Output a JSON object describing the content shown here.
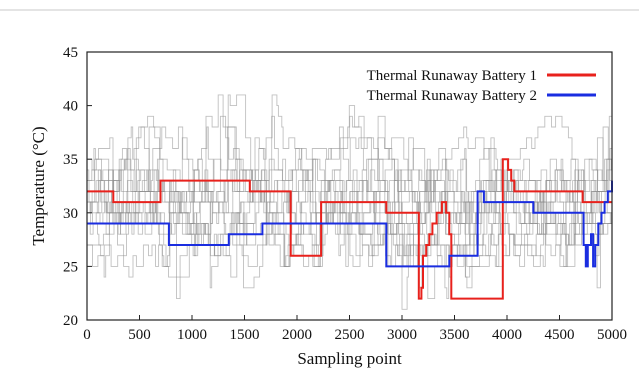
{
  "chart_data": {
    "type": "line",
    "title": "",
    "xlabel": "Sampling point",
    "ylabel": "Temperature (°C)",
    "xlim": [
      0,
      5000
    ],
    "ylim": [
      20,
      45
    ],
    "x_ticks": [
      0,
      500,
      1000,
      1500,
      2000,
      2500,
      3000,
      3500,
      4000,
      4500,
      5000
    ],
    "y_ticks": [
      20,
      25,
      30,
      35,
      40,
      45
    ],
    "grid": false,
    "legend_position": "top-right",
    "background_series": {
      "description_color": "#8c8c8c",
      "value_range": [
        21,
        41
      ],
      "count": 14
    },
    "series": [
      {
        "name": "Thermal Runaway Battery 1",
        "color": "#e8211c",
        "points": [
          [
            0,
            32
          ],
          [
            250,
            32
          ],
          [
            250,
            31
          ],
          [
            700,
            31
          ],
          [
            700,
            33
          ],
          [
            1550,
            33
          ],
          [
            1550,
            32
          ],
          [
            1940,
            32
          ],
          [
            1940,
            26
          ],
          [
            2230,
            26
          ],
          [
            2230,
            31
          ],
          [
            2850,
            31
          ],
          [
            2850,
            30
          ],
          [
            3160,
            30
          ],
          [
            3160,
            22
          ],
          [
            3185,
            22
          ],
          [
            3185,
            23
          ],
          [
            3200,
            23
          ],
          [
            3200,
            26
          ],
          [
            3230,
            26
          ],
          [
            3230,
            27
          ],
          [
            3260,
            27
          ],
          [
            3260,
            28
          ],
          [
            3290,
            28
          ],
          [
            3290,
            29
          ],
          [
            3330,
            29
          ],
          [
            3330,
            30
          ],
          [
            3380,
            30
          ],
          [
            3380,
            31
          ],
          [
            3420,
            31
          ],
          [
            3420,
            30
          ],
          [
            3450,
            30
          ],
          [
            3450,
            28
          ],
          [
            3470,
            28
          ],
          [
            3470,
            22
          ],
          [
            3960,
            22
          ],
          [
            3960,
            35
          ],
          [
            4010,
            35
          ],
          [
            4010,
            34
          ],
          [
            4040,
            34
          ],
          [
            4040,
            33
          ],
          [
            4070,
            33
          ],
          [
            4070,
            32
          ],
          [
            4720,
            32
          ],
          [
            4720,
            31
          ],
          [
            5000,
            31
          ]
        ]
      },
      {
        "name": "Thermal Runaway Battery 2",
        "color": "#1a2de0",
        "points": [
          [
            0,
            29
          ],
          [
            780,
            29
          ],
          [
            780,
            27
          ],
          [
            1350,
            27
          ],
          [
            1350,
            28
          ],
          [
            1670,
            28
          ],
          [
            1670,
            29
          ],
          [
            2850,
            29
          ],
          [
            2850,
            25
          ],
          [
            3450,
            25
          ],
          [
            3450,
            26
          ],
          [
            3720,
            26
          ],
          [
            3720,
            32
          ],
          [
            3780,
            32
          ],
          [
            3780,
            31
          ],
          [
            4250,
            31
          ],
          [
            4250,
            30
          ],
          [
            4730,
            30
          ],
          [
            4730,
            27
          ],
          [
            4750,
            27
          ],
          [
            4750,
            25
          ],
          [
            4770,
            25
          ],
          [
            4770,
            27
          ],
          [
            4800,
            27
          ],
          [
            4800,
            28
          ],
          [
            4820,
            28
          ],
          [
            4820,
            25
          ],
          [
            4840,
            25
          ],
          [
            4840,
            27
          ],
          [
            4870,
            27
          ],
          [
            4870,
            29
          ],
          [
            4900,
            29
          ],
          [
            4900,
            30
          ],
          [
            4930,
            30
          ],
          [
            4930,
            31
          ],
          [
            4960,
            31
          ],
          [
            4960,
            32
          ],
          [
            5000,
            32
          ],
          [
            5000,
            33
          ]
        ]
      }
    ]
  }
}
